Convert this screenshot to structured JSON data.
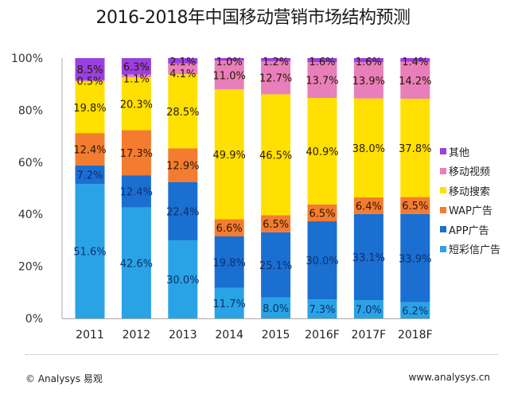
{
  "chart_data": {
    "type": "bar",
    "stacked": true,
    "title": "2016-2018年中国移动营销市场结构预测",
    "xlabel": "",
    "ylabel": "",
    "ylim": [
      0,
      100
    ],
    "yticks": [
      "0%",
      "20%",
      "40%",
      "60%",
      "80%",
      "100%"
    ],
    "ytick_values": [
      0,
      20,
      40,
      60,
      80,
      100
    ],
    "grid": false,
    "legend_position": "right",
    "categories": [
      "2011",
      "2012",
      "2013",
      "2014",
      "2015",
      "2016F",
      "2017F",
      "2018F"
    ],
    "series": [
      {
        "name": "短彩信广告",
        "color": "#29a3e6",
        "values": [
          51.6,
          42.6,
          30.0,
          11.7,
          8.0,
          7.3,
          7.0,
          6.2
        ],
        "labels": [
          "51.6%",
          "42.6%",
          "30.0%",
          "11.7%",
          "8.0%",
          "7.3%",
          "7.0%",
          "6.2%"
        ]
      },
      {
        "name": "APP广告",
        "color": "#1a6fd1",
        "values": [
          7.2,
          12.4,
          22.4,
          19.8,
          25.1,
          30.0,
          33.1,
          33.9
        ],
        "labels": [
          "7.2%",
          "12.4%",
          "22.4%",
          "19.8%",
          "25.1%",
          "30.0%",
          "33.1%",
          "33.9%"
        ]
      },
      {
        "name": "WAP广告",
        "color": "#f47c30",
        "values": [
          12.4,
          17.3,
          12.9,
          6.6,
          6.5,
          6.5,
          6.4,
          6.5
        ],
        "labels": [
          "12.4%",
          "17.3%",
          "12.9%",
          "6.6%",
          "6.5%",
          "6.5%",
          "6.4%",
          "6.5%"
        ]
      },
      {
        "name": "移动搜索",
        "color": "#ffe000",
        "values": [
          19.8,
          20.3,
          28.5,
          49.9,
          46.5,
          40.9,
          38.0,
          37.8
        ],
        "labels": [
          "19.8%",
          "20.3%",
          "28.5%",
          "49.9%",
          "46.5%",
          "40.9%",
          "38.0%",
          "37.8%"
        ]
      },
      {
        "name": "移动视频",
        "color": "#e87fba",
        "values": [
          0.5,
          1.1,
          4.1,
          11.0,
          12.7,
          13.7,
          13.9,
          14.2
        ],
        "labels": [
          "0.5%",
          "1.1%",
          "4.1%",
          "11.0%",
          "12.7%",
          "13.7%",
          "13.9%",
          "14.2%"
        ]
      },
      {
        "name": "其他",
        "color": "#9a3fe0",
        "values": [
          8.5,
          6.3,
          2.1,
          1.0,
          1.2,
          1.6,
          1.6,
          1.4
        ],
        "labels": [
          "8.5%",
          "6.3%",
          "2.1%",
          "1.0%",
          "1.2%",
          "1.6%",
          "1.6%",
          "1.4%"
        ]
      }
    ],
    "legend_order": [
      "其他",
      "移动视频",
      "移动搜索",
      "WAP广告",
      "APP广告",
      "短彩信广告"
    ]
  },
  "footer": {
    "copyright": "© Analysys 易观",
    "website": "www.analysys.cn"
  }
}
